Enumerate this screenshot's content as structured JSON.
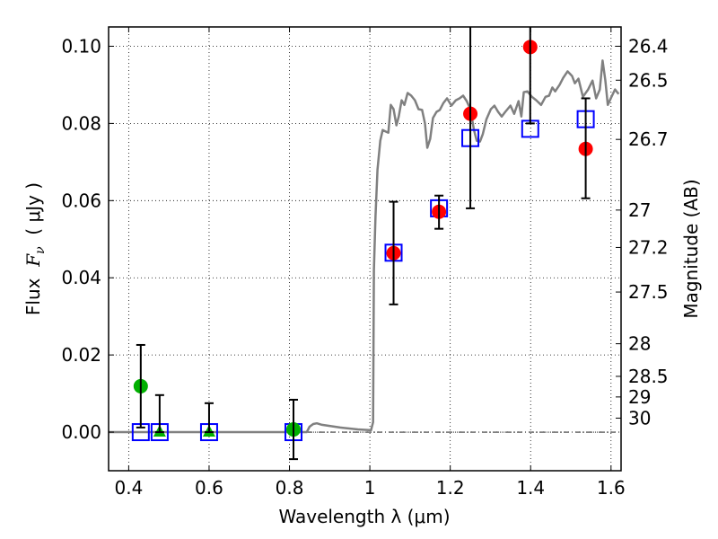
{
  "chart_data": {
    "type": "scatter",
    "title": "",
    "xlabel": "Wavelength  λ (μm)",
    "ylabel": "Flux  Fν  ( μJy )",
    "ylabel_parts": {
      "prefix": "Flux  ",
      "symbol": "F",
      "subscript": "ν",
      "suffix": "  ( μJy )"
    },
    "y2label": "Magnitude (AB)",
    "xlim": [
      0.35,
      1.625
    ],
    "ylim": [
      -0.01,
      0.105
    ],
    "grid": true,
    "x_ticks": [
      0.4,
      0.6,
      0.8,
      1.0,
      1.2,
      1.4,
      1.6
    ],
    "x_tick_labels": [
      "0.4",
      "0.6",
      "0.8",
      "1",
      "1.2",
      "1.4",
      "1.6"
    ],
    "y_ticks": [
      0.0,
      0.02,
      0.04,
      0.06,
      0.08,
      0.1
    ],
    "y_tick_labels": [
      "0.00",
      "0.02",
      "0.04",
      "0.06",
      "0.08",
      "0.10"
    ],
    "y2_ticks": [
      26.4,
      26.5,
      26.7,
      27,
      27.2,
      27.5,
      28,
      28.5,
      29,
      30
    ],
    "y2_tick_labels": [
      "26.4",
      "26.5",
      "26.7",
      "27",
      "27.2",
      "27.5",
      "28",
      "28.5",
      "29",
      "30"
    ],
    "y2_conversion": "mag = 23.9 - 2.5*log10(flux_uJy)",
    "zero_line": {
      "y": 0,
      "style": "dash-dot",
      "color": "#000000"
    },
    "colors": {
      "spectrum": "#808080",
      "detection": "#ff0000",
      "upper_limit": "#00b000",
      "model": "#0000ff",
      "errorbar": "#000000"
    },
    "series": [
      {
        "name": "model spectrum",
        "type": "line",
        "color": "#808080",
        "points": [
          [
            0.35,
            0
          ],
          [
            0.843,
            0
          ],
          [
            0.85,
            0.0014
          ],
          [
            0.859,
            0.0021
          ],
          [
            0.868,
            0.0023
          ],
          [
            0.881,
            0.0019
          ],
          [
            0.926,
            0.0012
          ],
          [
            0.97,
            0.0007
          ],
          [
            1.003,
            0.0005
          ],
          [
            1.008,
            0.0026
          ],
          [
            1.01,
            0.042
          ],
          [
            1.014,
            0.056
          ],
          [
            1.019,
            0.068
          ],
          [
            1.026,
            0.0755
          ],
          [
            1.032,
            0.0783
          ],
          [
            1.039,
            0.0779
          ],
          [
            1.046,
            0.0776
          ],
          [
            1.052,
            0.0848
          ],
          [
            1.059,
            0.0837
          ],
          [
            1.066,
            0.0795
          ],
          [
            1.072,
            0.0818
          ],
          [
            1.079,
            0.086
          ],
          [
            1.086,
            0.0848
          ],
          [
            1.094,
            0.0879
          ],
          [
            1.103,
            0.0872
          ],
          [
            1.112,
            0.086
          ],
          [
            1.121,
            0.0837
          ],
          [
            1.13,
            0.0835
          ],
          [
            1.137,
            0.08
          ],
          [
            1.143,
            0.0737
          ],
          [
            1.15,
            0.076
          ],
          [
            1.157,
            0.0814
          ],
          [
            1.166,
            0.083
          ],
          [
            1.174,
            0.0835
          ],
          [
            1.183,
            0.0853
          ],
          [
            1.192,
            0.0865
          ],
          [
            1.203,
            0.0846
          ],
          [
            1.214,
            0.086
          ],
          [
            1.223,
            0.0865
          ],
          [
            1.232,
            0.0872
          ],
          [
            1.241,
            0.0858
          ],
          [
            1.25,
            0.0837
          ],
          [
            1.259,
            0.0783
          ],
          [
            1.266,
            0.0755
          ],
          [
            1.274,
            0.0753
          ],
          [
            1.281,
            0.0772
          ],
          [
            1.29,
            0.0811
          ],
          [
            1.301,
            0.0837
          ],
          [
            1.31,
            0.0846
          ],
          [
            1.319,
            0.083
          ],
          [
            1.328,
            0.0818
          ],
          [
            1.337,
            0.083
          ],
          [
            1.35,
            0.0846
          ],
          [
            1.359,
            0.0825
          ],
          [
            1.37,
            0.0858
          ],
          [
            1.377,
            0.0818
          ],
          [
            1.383,
            0.0881
          ],
          [
            1.392,
            0.0883
          ],
          [
            1.403,
            0.0869
          ],
          [
            1.414,
            0.086
          ],
          [
            1.426,
            0.0848
          ],
          [
            1.437,
            0.0869
          ],
          [
            1.446,
            0.0872
          ],
          [
            1.454,
            0.0893
          ],
          [
            1.461,
            0.0883
          ],
          [
            1.472,
            0.09
          ],
          [
            1.481,
            0.0918
          ],
          [
            1.492,
            0.0935
          ],
          [
            1.503,
            0.0923
          ],
          [
            1.51,
            0.0904
          ],
          [
            1.519,
            0.0916
          ],
          [
            1.53,
            0.0869
          ],
          [
            1.543,
            0.0888
          ],
          [
            1.554,
            0.0911
          ],
          [
            1.563,
            0.0865
          ],
          [
            1.572,
            0.0888
          ],
          [
            1.579,
            0.0963
          ],
          [
            1.586,
            0.0911
          ],
          [
            1.592,
            0.0848
          ],
          [
            1.601,
            0.0869
          ],
          [
            1.61,
            0.0888
          ],
          [
            1.619,
            0.0876
          ]
        ]
      },
      {
        "name": "errorbars",
        "type": "errorbar",
        "color": "#000000",
        "points": [
          {
            "x": 0.43,
            "low": 0.0012,
            "high": 0.0226
          },
          {
            "x": 0.477,
            "low": 0.0,
            "high": 0.0096
          },
          {
            "x": 0.6,
            "low": 0.0,
            "high": 0.0075
          },
          {
            "x": 0.81,
            "low": -0.007,
            "high": 0.0084
          },
          {
            "x": 1.059,
            "low": 0.0331,
            "high": 0.0597
          },
          {
            "x": 1.172,
            "low": 0.0527,
            "high": 0.0613
          },
          {
            "x": 1.25,
            "low": 0.058,
            "high": 0.12
          },
          {
            "x": 1.399,
            "low": 0.08,
            "high": 0.12
          },
          {
            "x": 1.537,
            "low": 0.0606,
            "high": 0.0865
          }
        ]
      },
      {
        "name": "model photometry",
        "type": "scatter",
        "marker": "open-square",
        "color": "#0000ff",
        "x": [
          0.43,
          0.477,
          0.6,
          0.81,
          1.059,
          1.172,
          1.25,
          1.399,
          1.537
        ],
        "y": [
          0.0,
          0.0,
          0.0,
          0.0,
          0.0465,
          0.058,
          0.0762,
          0.0786,
          0.0811
        ]
      },
      {
        "name": "observed (non-detection bands)",
        "type": "scatter",
        "marker": "circle",
        "color": "#00b000",
        "x": [
          0.43,
          0.81
        ],
        "y": [
          0.0119,
          0.0007
        ]
      },
      {
        "name": "upper limits",
        "type": "scatter",
        "marker": "triangle",
        "color": "#00b000",
        "x": [
          0.477,
          0.6
        ],
        "y": [
          0.0,
          0.0
        ]
      },
      {
        "name": "observed detections",
        "type": "scatter",
        "marker": "circle",
        "color": "#ff0000",
        "x": [
          1.059,
          1.172,
          1.25,
          1.399,
          1.537
        ],
        "y": [
          0.0464,
          0.0571,
          0.0825,
          0.0998,
          0.0734
        ]
      }
    ]
  }
}
